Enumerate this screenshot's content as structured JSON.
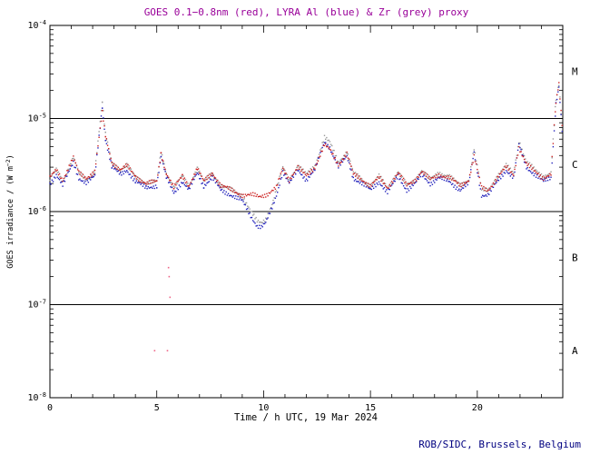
{
  "footer": {
    "credit": "ROB/SIDC, Brussels, Belgium",
    "color": "#000080"
  },
  "chart_data": {
    "type": "scatter",
    "title": "GOES 0.1−0.8nm (red), LYRA Al (blue) & Zr (grey) proxy",
    "title_color": "#990099",
    "xlabel": "Time / h UTC, 19 Mar 2024",
    "ylabel_parts": {
      "pre": "GOES irradiance / (W m",
      "exp": "−2",
      "post": ")"
    },
    "xlim": [
      0,
      24
    ],
    "x_major_ticks": [
      0,
      5,
      10,
      15,
      20
    ],
    "x_minor_step": 1,
    "yscale": "log",
    "y_exponents": [
      -4,
      -5,
      -6,
      -7,
      -8
    ],
    "hlines": [
      1e-05,
      1e-06,
      1e-07
    ],
    "class_labels": [
      {
        "label": "M",
        "flux": 3.2e-05
      },
      {
        "label": "C",
        "flux": 3.2e-06
      },
      {
        "label": "B",
        "flux": 3.2e-07
      },
      {
        "label": "A",
        "flux": 3.2e-08
      }
    ],
    "grid": false,
    "legend": "in title",
    "series": [
      {
        "name": "GOES 0.1-0.8nm",
        "color": "#cc2222",
        "points": [
          [
            0.0,
            2.3e-06
          ],
          [
            0.3,
            2.8e-06
          ],
          [
            0.6,
            2.2e-06
          ],
          [
            1.1,
            3.8e-06
          ],
          [
            1.35,
            2.6e-06
          ],
          [
            1.7,
            2.3e-06
          ],
          [
            2.1,
            2.7e-06
          ],
          [
            2.45,
            1.15e-05
          ],
          [
            2.6,
            6.5e-06
          ],
          [
            2.9,
            3.4e-06
          ],
          [
            3.3,
            2.8e-06
          ],
          [
            3.6,
            3.1e-06
          ],
          [
            4.0,
            2.4e-06
          ],
          [
            4.5,
            2e-06
          ],
          [
            5.0,
            2.1e-06
          ],
          [
            5.2,
            4.2e-06
          ],
          [
            5.45,
            2.6e-06
          ],
          [
            5.8,
            1.8e-06
          ],
          [
            6.2,
            2.4e-06
          ],
          [
            6.5,
            1.9e-06
          ],
          [
            6.9,
            2.9e-06
          ],
          [
            7.2,
            2.1e-06
          ],
          [
            7.6,
            2.6e-06
          ],
          [
            8.0,
            1.9e-06
          ],
          [
            8.5,
            1.7e-06
          ],
          [
            9.0,
            1.5e-06
          ],
          [
            9.5,
            1.5e-06
          ],
          [
            9.8,
            1.45e-06
          ],
          [
            10.2,
            1.55e-06
          ],
          [
            10.6,
            1.8e-06
          ],
          [
            10.9,
            2.9e-06
          ],
          [
            11.2,
            2.2e-06
          ],
          [
            11.6,
            3e-06
          ],
          [
            12.0,
            2.4e-06
          ],
          [
            12.4,
            3e-06
          ],
          [
            12.85,
            5.2e-06
          ],
          [
            13.1,
            4.6e-06
          ],
          [
            13.5,
            3.2e-06
          ],
          [
            13.9,
            4.2e-06
          ],
          [
            14.2,
            2.5e-06
          ],
          [
            14.6,
            2.2e-06
          ],
          [
            15.0,
            1.9e-06
          ],
          [
            15.4,
            2.3e-06
          ],
          [
            15.8,
            1.8e-06
          ],
          [
            16.3,
            2.6e-06
          ],
          [
            16.7,
            1.9e-06
          ],
          [
            17.1,
            2.2e-06
          ],
          [
            17.4,
            2.7e-06
          ],
          [
            17.8,
            2.2e-06
          ],
          [
            18.2,
            2.5e-06
          ],
          [
            18.7,
            2.3e-06
          ],
          [
            19.2,
            1.9e-06
          ],
          [
            19.6,
            2.2e-06
          ],
          [
            19.85,
            3.9e-06
          ],
          [
            20.2,
            1.8e-06
          ],
          [
            20.5,
            1.7e-06
          ],
          [
            21.0,
            2.4e-06
          ],
          [
            21.35,
            3e-06
          ],
          [
            21.7,
            2.5e-06
          ],
          [
            21.95,
            4.9e-06
          ],
          [
            22.3,
            3.2e-06
          ],
          [
            22.7,
            2.7e-06
          ],
          [
            23.1,
            2.3e-06
          ],
          [
            23.45,
            2.5e-06
          ],
          [
            23.68,
            1.5e-05
          ],
          [
            23.82,
            2.4e-05
          ],
          [
            24.0,
            7e-06
          ]
        ]
      },
      {
        "name": "LYRA Al",
        "color": "#2222bb",
        "points": [
          [
            0.0,
            2e-06
          ],
          [
            0.3,
            2.5e-06
          ],
          [
            0.6,
            1.9e-06
          ],
          [
            1.1,
            3.4e-06
          ],
          [
            1.35,
            2.3e-06
          ],
          [
            1.7,
            2e-06
          ],
          [
            2.1,
            2.4e-06
          ],
          [
            2.45,
            1.35e-05
          ],
          [
            2.6,
            6e-06
          ],
          [
            2.9,
            3e-06
          ],
          [
            3.3,
            2.5e-06
          ],
          [
            3.6,
            2.8e-06
          ],
          [
            4.0,
            2.1e-06
          ],
          [
            4.5,
            1.8e-06
          ],
          [
            5.0,
            1.9e-06
          ],
          [
            5.2,
            3.9e-06
          ],
          [
            5.45,
            2.3e-06
          ],
          [
            5.8,
            1.6e-06
          ],
          [
            6.2,
            2.1e-06
          ],
          [
            6.5,
            1.7e-06
          ],
          [
            6.9,
            2.6e-06
          ],
          [
            7.2,
            1.9e-06
          ],
          [
            7.6,
            2.3e-06
          ],
          [
            8.0,
            1.7e-06
          ],
          [
            8.5,
            1.5e-06
          ],
          [
            9.0,
            1.3e-06
          ],
          [
            9.4,
            9e-07
          ],
          [
            9.7,
            7e-07
          ],
          [
            9.9,
            6.8e-07
          ],
          [
            10.1,
            7.5e-07
          ],
          [
            10.4,
            1.1e-06
          ],
          [
            10.6,
            1.5e-06
          ],
          [
            10.9,
            2.7e-06
          ],
          [
            11.2,
            2e-06
          ],
          [
            11.6,
            2.8e-06
          ],
          [
            12.0,
            2.2e-06
          ],
          [
            12.4,
            2.8e-06
          ],
          [
            12.85,
            5.6e-06
          ],
          [
            13.1,
            4.9e-06
          ],
          [
            13.5,
            3e-06
          ],
          [
            13.9,
            3.9e-06
          ],
          [
            14.2,
            2.3e-06
          ],
          [
            14.6,
            2e-06
          ],
          [
            15.0,
            1.7e-06
          ],
          [
            15.4,
            2.1e-06
          ],
          [
            15.8,
            1.6e-06
          ],
          [
            16.3,
            2.4e-06
          ],
          [
            16.7,
            1.7e-06
          ],
          [
            17.1,
            2e-06
          ],
          [
            17.4,
            2.5e-06
          ],
          [
            17.8,
            2e-06
          ],
          [
            18.2,
            2.3e-06
          ],
          [
            18.7,
            2.1e-06
          ],
          [
            19.2,
            1.7e-06
          ],
          [
            19.6,
            2e-06
          ],
          [
            19.85,
            4.3e-06
          ],
          [
            20.2,
            1.5e-06
          ],
          [
            20.5,
            1.5e-06
          ],
          [
            21.0,
            2.2e-06
          ],
          [
            21.35,
            2.8e-06
          ],
          [
            21.7,
            2.3e-06
          ],
          [
            21.95,
            5.2e-06
          ],
          [
            22.3,
            3e-06
          ],
          [
            22.7,
            2.5e-06
          ],
          [
            23.1,
            2.1e-06
          ],
          [
            23.45,
            2.3e-06
          ],
          [
            23.68,
            1.4e-05
          ],
          [
            23.82,
            2.1e-05
          ],
          [
            24.0,
            6e-06
          ]
        ]
      },
      {
        "name": "LYRA Zr proxy",
        "color": "#999999",
        "points": [
          [
            0.0,
            2.2e-06
          ],
          [
            0.3,
            2.8e-06
          ],
          [
            0.6,
            2.1e-06
          ],
          [
            1.1,
            3.8e-06
          ],
          [
            1.35,
            2.6e-06
          ],
          [
            1.7,
            2.2e-06
          ],
          [
            2.1,
            2.7e-06
          ],
          [
            2.45,
            1.5e-05
          ],
          [
            2.6,
            6.7e-06
          ],
          [
            2.9,
            3.4e-06
          ],
          [
            3.3,
            2.8e-06
          ],
          [
            3.6,
            3.1e-06
          ],
          [
            4.0,
            2.4e-06
          ],
          [
            4.5,
            2e-06
          ],
          [
            5.0,
            2.1e-06
          ],
          [
            5.2,
            4.4e-06
          ],
          [
            5.45,
            2.6e-06
          ],
          [
            5.8,
            1.8e-06
          ],
          [
            6.2,
            2.4e-06
          ],
          [
            6.5,
            1.9e-06
          ],
          [
            6.9,
            2.9e-06
          ],
          [
            7.2,
            2.1e-06
          ],
          [
            7.6,
            2.6e-06
          ],
          [
            8.0,
            1.9e-06
          ],
          [
            8.5,
            1.7e-06
          ],
          [
            9.0,
            1.5e-06
          ],
          [
            9.4,
            1e-06
          ],
          [
            9.7,
            7.8e-07
          ],
          [
            9.9,
            7.6e-07
          ],
          [
            10.1,
            8.4e-07
          ],
          [
            10.4,
            1.2e-06
          ],
          [
            10.6,
            1.7e-06
          ],
          [
            10.9,
            3e-06
          ],
          [
            11.2,
            2.2e-06
          ],
          [
            11.6,
            3.1e-06
          ],
          [
            12.0,
            2.5e-06
          ],
          [
            12.4,
            3.1e-06
          ],
          [
            12.85,
            6.3e-06
          ],
          [
            13.1,
            5.5e-06
          ],
          [
            13.5,
            3.4e-06
          ],
          [
            13.9,
            4.4e-06
          ],
          [
            14.2,
            2.6e-06
          ],
          [
            14.6,
            2.2e-06
          ],
          [
            15.0,
            1.9e-06
          ],
          [
            15.4,
            2.4e-06
          ],
          [
            15.8,
            1.8e-06
          ],
          [
            16.3,
            2.7e-06
          ],
          [
            16.7,
            1.9e-06
          ],
          [
            17.1,
            2.2e-06
          ],
          [
            17.4,
            2.8e-06
          ],
          [
            17.8,
            2.2e-06
          ],
          [
            18.2,
            2.6e-06
          ],
          [
            18.7,
            2.4e-06
          ],
          [
            19.2,
            1.9e-06
          ],
          [
            19.6,
            2.2e-06
          ],
          [
            19.85,
            4.8e-06
          ],
          [
            20.2,
            1.7e-06
          ],
          [
            20.5,
            1.7e-06
          ],
          [
            21.0,
            2.5e-06
          ],
          [
            21.35,
            3.1e-06
          ],
          [
            21.7,
            2.6e-06
          ],
          [
            21.95,
            5.8e-06
          ],
          [
            22.3,
            3.4e-06
          ],
          [
            22.7,
            2.8e-06
          ],
          [
            23.1,
            2.4e-06
          ],
          [
            23.45,
            2.6e-06
          ],
          [
            23.68,
            1.6e-05
          ],
          [
            23.82,
            2.4e-05
          ],
          [
            24.0,
            6.7e-06
          ]
        ]
      }
    ],
    "outliers": {
      "color": "#ee6688",
      "points": [
        [
          5.55,
          2.5e-07
        ],
        [
          5.62,
          1.2e-07
        ],
        [
          5.5,
          3.2e-08
        ],
        [
          4.9,
          3.2e-08
        ],
        [
          5.58,
          2e-07
        ]
      ]
    }
  }
}
